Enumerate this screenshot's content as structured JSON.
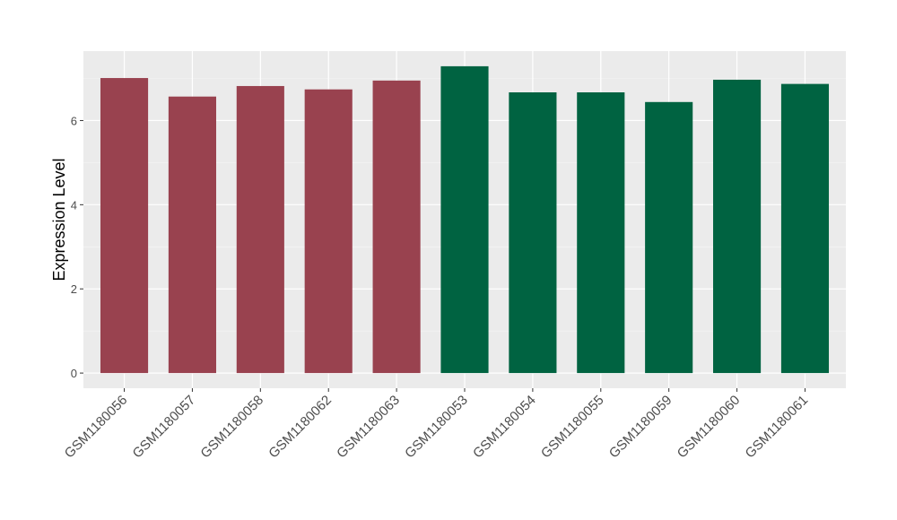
{
  "chart_data": {
    "type": "bar",
    "y_label": "Expression Level",
    "categories": [
      "GSM1180056",
      "GSM1180057",
      "GSM1180058",
      "GSM1180062",
      "GSM1180063",
      "GSM1180053",
      "GSM1180054",
      "GSM1180055",
      "GSM1180059",
      "GSM1180060",
      "GSM1180061"
    ],
    "values": [
      7.01,
      6.57,
      6.82,
      6.74,
      6.95,
      7.29,
      6.67,
      6.67,
      6.44,
      6.97,
      6.87
    ],
    "colors": [
      "#99424f",
      "#99424f",
      "#99424f",
      "#99424f",
      "#99424f",
      "#006341",
      "#006341",
      "#006341",
      "#006341",
      "#006341",
      "#006341"
    ],
    "ylim": [
      -0.36,
      7.65
    ],
    "yticks": [
      0,
      2,
      4,
      6
    ],
    "yminor_ticks": [
      1,
      3,
      5,
      7
    ],
    "grid": true
  }
}
